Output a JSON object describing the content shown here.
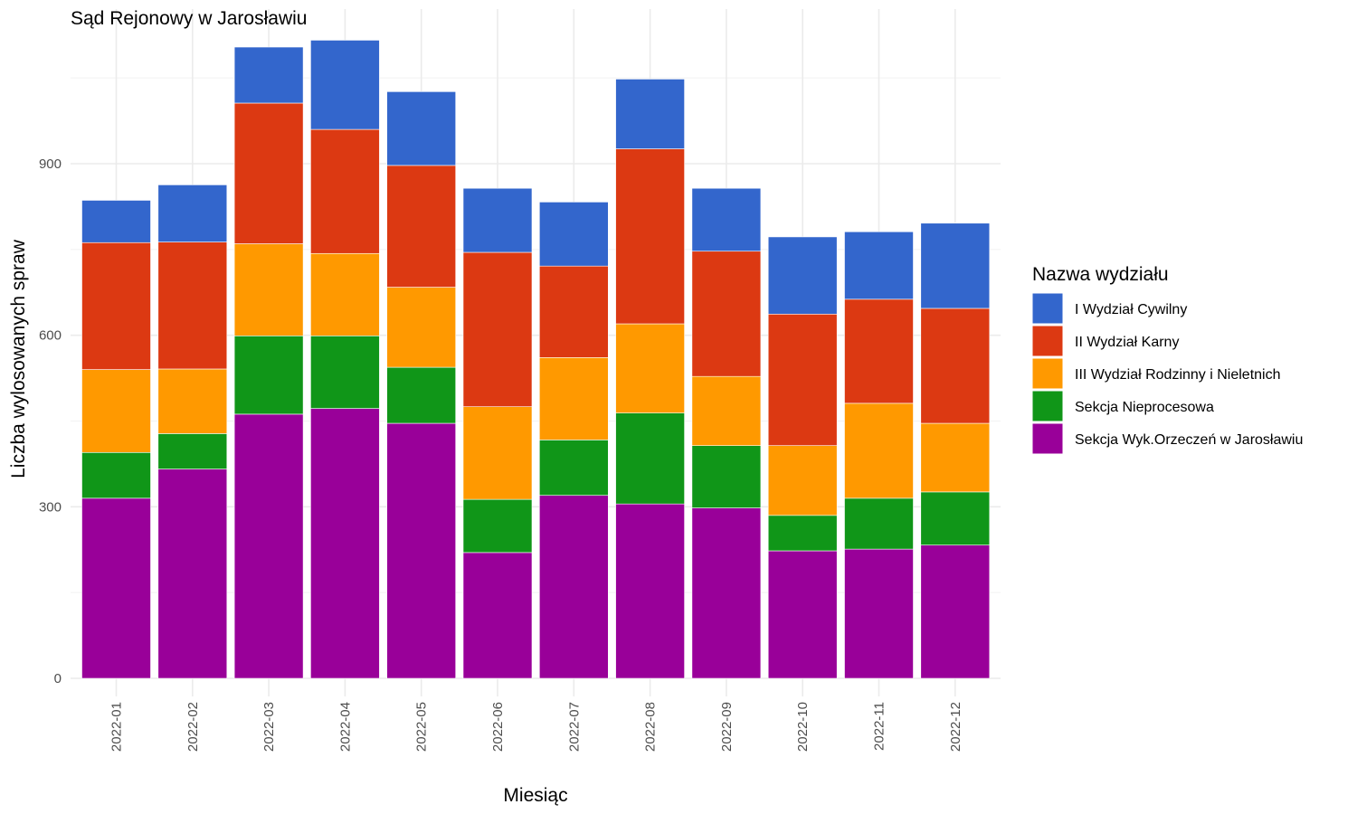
{
  "chart_data": {
    "type": "bar",
    "stacked": true,
    "title": "Sąd Rejonowy w Jarosławiu",
    "xlabel": "Miesiąc",
    "ylabel": "Liczba wylosowanych spraw",
    "ylim": [
      0,
      1120
    ],
    "yticks": [
      0,
      300,
      600,
      900
    ],
    "grid": true,
    "legend_position": "right",
    "legend_title": "Nazwa wydziału",
    "categories": [
      "2022-01",
      "2022-02",
      "2022-03",
      "2022-04",
      "2022-05",
      "2022-06",
      "2022-07",
      "2022-08",
      "2022-09",
      "2022-10",
      "2022-11",
      "2022-12"
    ],
    "series": [
      {
        "name": "Sekcja Wyk.Orzeczeń w Jarosławiu",
        "color": "#990099",
        "values": [
          315,
          366,
          462,
          472,
          446,
          220,
          320,
          305,
          298,
          223,
          226,
          233
        ]
      },
      {
        "name": "Sekcja Nieprocesowa",
        "color": "#109618",
        "values": [
          80,
          62,
          137,
          127,
          98,
          93,
          97,
          159,
          109,
          62,
          89,
          93
        ]
      },
      {
        "name": "III Wydział Rodzinny i Nieletnich",
        "color": "#ff9900",
        "values": [
          145,
          113,
          161,
          144,
          140,
          162,
          144,
          156,
          121,
          122,
          166,
          120
        ]
      },
      {
        "name": "II Wydział Karny",
        "color": "#dc3912",
        "values": [
          222,
          222,
          246,
          217,
          213,
          270,
          160,
          306,
          219,
          230,
          182,
          201
        ]
      },
      {
        "name": "I Wydział Cywilny",
        "color": "#3366cc",
        "values": [
          74,
          100,
          98,
          156,
          129,
          112,
          112,
          122,
          110,
          135,
          118,
          149
        ]
      }
    ],
    "legend_order": [
      "I Wydział Cywilny",
      "II Wydział Karny",
      "III Wydział Rodzinny i Nieletnich",
      "Sekcja Nieprocesowa",
      "Sekcja Wyk.Orzeczeń w Jarosławiu"
    ]
  }
}
